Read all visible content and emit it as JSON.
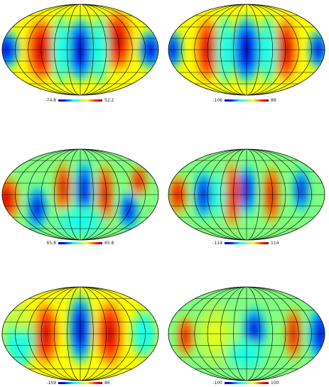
{
  "colormap": [
    "#00007f",
    "#0000ff",
    "#00bfff",
    "#00ffff",
    "#80ff80",
    "#ffff00",
    "#ff8000",
    "#ff0000",
    "#7f0000"
  ],
  "panels": [
    {
      "id": "p1",
      "min_label": "-74.8",
      "max_label": "52.2"
    },
    {
      "id": "p2",
      "min_label": "-106",
      "max_label": "89"
    },
    {
      "id": "p3",
      "min_label": "65.8",
      "max_label": "65.8"
    },
    {
      "id": "p4",
      "min_label": "-114",
      "max_label": "114"
    },
    {
      "id": "p5",
      "min_label": "-159",
      "max_label": "86"
    },
    {
      "id": "p6",
      "min_label": "-100",
      "max_label": "100"
    }
  ]
}
